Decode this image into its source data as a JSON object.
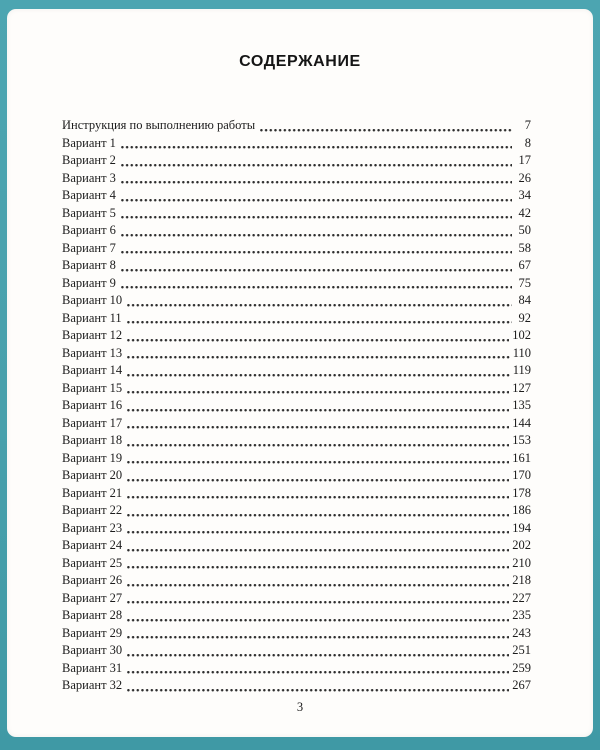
{
  "document": {
    "title": "СОДЕРЖАНИЕ",
    "folio": "3",
    "toc": {
      "entries": [
        {
          "label": "Инструкция по выполнению работы",
          "page": "7"
        },
        {
          "label": "Вариант 1",
          "page": "8"
        },
        {
          "label": "Вариант 2",
          "page": "17"
        },
        {
          "label": "Вариант 3",
          "page": "26"
        },
        {
          "label": "Вариант 4",
          "page": "34"
        },
        {
          "label": "Вариант 5",
          "page": "42"
        },
        {
          "label": "Вариант 6",
          "page": "50"
        },
        {
          "label": "Вариант 7",
          "page": "58"
        },
        {
          "label": "Вариант 8",
          "page": "67"
        },
        {
          "label": "Вариант 9",
          "page": "75"
        },
        {
          "label": "Вариант 10",
          "page": "84"
        },
        {
          "label": "Вариант 11",
          "page": "92"
        },
        {
          "label": "Вариант 12",
          "page": "102"
        },
        {
          "label": "Вариант 13",
          "page": "110"
        },
        {
          "label": "Вариант 14",
          "page": "119"
        },
        {
          "label": "Вариант 15",
          "page": "127"
        },
        {
          "label": "Вариант 16",
          "page": "135"
        },
        {
          "label": "Вариант 17",
          "page": "144"
        },
        {
          "label": "Вариант 18",
          "page": "153"
        },
        {
          "label": "Вариант 19",
          "page": "161"
        },
        {
          "label": "Вариант 20",
          "page": "170"
        },
        {
          "label": "Вариант 21",
          "page": "178"
        },
        {
          "label": "Вариант 22",
          "page": "186"
        },
        {
          "label": "Вариант 23",
          "page": "194"
        },
        {
          "label": "Вариант 24",
          "page": "202"
        },
        {
          "label": "Вариант 25",
          "page": "210"
        },
        {
          "label": "Вариант 26",
          "page": "218"
        },
        {
          "label": "Вариант 27",
          "page": "227"
        },
        {
          "label": "Вариант 28",
          "page": "235"
        },
        {
          "label": "Вариант 29",
          "page": "243"
        },
        {
          "label": "Вариант 30",
          "page": "251"
        },
        {
          "label": "Вариант 31",
          "page": "259"
        },
        {
          "label": "Вариант 32",
          "page": "267"
        }
      ]
    }
  },
  "colors": {
    "surround": "#48a0ac",
    "surround_light": "#4ca5b1",
    "surround_dark": "#3f99a5",
    "paper": "#fefdfb",
    "text": "#1c1c1c"
  }
}
